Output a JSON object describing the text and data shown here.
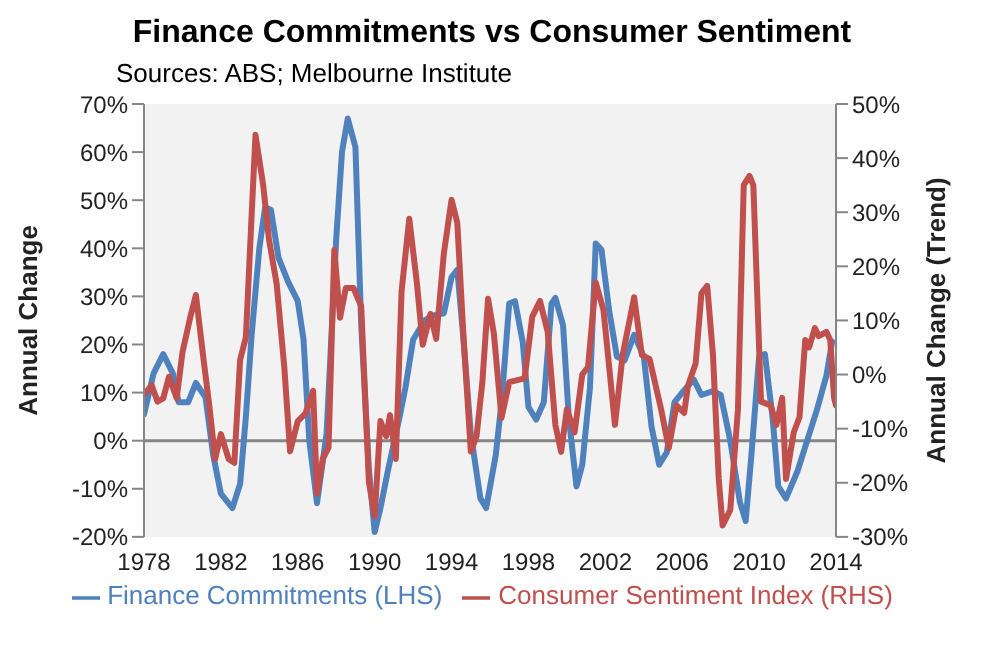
{
  "chart_data": {
    "type": "line",
    "title": "Finance Commitments vs Consumer Sentiment",
    "subtitle": "Sources: ABS; Melbourne Institute",
    "ylabel": "Annual Change",
    "y2label": "Annual Change (Trend)",
    "xlim": [
      1978,
      2014
    ],
    "xticks": [
      1978,
      1982,
      1986,
      1990,
      1994,
      1998,
      2002,
      2006,
      2010,
      2014
    ],
    "ylim": [
      -20,
      70
    ],
    "yticks": [
      {
        "value": -20,
        "label": "-20%"
      },
      {
        "value": -10,
        "label": "-10%"
      },
      {
        "value": 0,
        "label": "0%"
      },
      {
        "value": 10,
        "label": "10%"
      },
      {
        "value": 20,
        "label": "20%"
      },
      {
        "value": 30,
        "label": "30%"
      },
      {
        "value": 40,
        "label": "40%"
      },
      {
        "value": 50,
        "label": "50%"
      },
      {
        "value": 60,
        "label": "60%"
      },
      {
        "value": 70,
        "label": "70%"
      }
    ],
    "y2lim": [
      -30,
      50
    ],
    "y2ticks": [
      {
        "value": -30,
        "label": "-30%"
      },
      {
        "value": -20,
        "label": "-20%"
      },
      {
        "value": -10,
        "label": "-10%"
      },
      {
        "value": 0,
        "label": "0%"
      },
      {
        "value": 10,
        "label": "10%"
      },
      {
        "value": 20,
        "label": "20%"
      },
      {
        "value": 30,
        "label": "30%"
      },
      {
        "value": 40,
        "label": "40%"
      },
      {
        "value": 50,
        "label": "50%"
      }
    ],
    "grid": false,
    "legend": "bottom",
    "marker": "none",
    "line_style": "solid",
    "ref_lines": [
      {
        "axis": "y",
        "value": 0,
        "color": "#868686"
      }
    ],
    "series": [
      {
        "name": "Finance Commitments (LHS)",
        "color": "#4f81bd",
        "x": [
          1978,
          1978.5,
          1979,
          1979.5,
          1979.8,
          1980.3,
          1980.7,
          1981.2,
          1981.6,
          1982,
          1982.6,
          1983,
          1983.3,
          1983.6,
          1984,
          1984.3,
          1984.6,
          1985,
          1985.5,
          1986,
          1986.3,
          1986.6,
          1987,
          1987.5,
          1988,
          1988.3,
          1988.6,
          1989,
          1989.3,
          1989.7,
          1990,
          1990.3,
          1990.7,
          1991.3,
          1991.6,
          1992,
          1992.6,
          1993,
          1993.6,
          1994,
          1994.3,
          1994.6,
          1995,
          1995.5,
          1995.8,
          1996.3,
          1996.6,
          1997,
          1997.3,
          1997.7,
          1998,
          1998.4,
          1998.8,
          1999.2,
          1999.4,
          1999.8,
          2000.1,
          2000.5,
          2000.8,
          2001.2,
          2001.5,
          2001.8,
          2002.2,
          2002.6,
          2003,
          2003.5,
          2004,
          2004.4,
          2004.8,
          2005.2,
          2005.6,
          2006,
          2006.6,
          2007,
          2007.6,
          2008,
          2008.5,
          2009,
          2009.3,
          2009.6,
          2010,
          2010.3,
          2010.7,
          2011,
          2011.4,
          2012,
          2012.5,
          2013,
          2013.5,
          2013.8
        ],
        "values": [
          5.5,
          14,
          18,
          14,
          8,
          8,
          12,
          9,
          -3,
          -11,
          -14,
          -9,
          5,
          22,
          40,
          48.5,
          48,
          38,
          33,
          29,
          21,
          0,
          -13,
          1.5,
          42,
          60,
          67,
          61,
          24,
          -6,
          -19,
          -14,
          -6,
          5,
          11,
          21,
          25,
          26,
          26.5,
          34,
          35.5,
          22,
          1.5,
          -12,
          -14,
          -3,
          8,
          28.5,
          29,
          20.6,
          7,
          4.4,
          8,
          28.5,
          29.7,
          24,
          4.8,
          -9.5,
          -5,
          11,
          41,
          39.7,
          27,
          17.5,
          16.7,
          22,
          17.5,
          3,
          -5,
          -2.4,
          8,
          10,
          12.7,
          9.5,
          10.3,
          9.5,
          0,
          -12.7,
          -16.7,
          -3,
          17.5,
          18,
          4.8,
          -9.5,
          -12,
          -6.3,
          0,
          6.3,
          13.5,
          20.6
        ]
      },
      {
        "name": "Consumer Sentiment Index (RHS)",
        "color": "#c0504d",
        "axis": "y2",
        "x": [
          1978,
          1978.4,
          1978.7,
          1979,
          1979.3,
          1979.7,
          1980,
          1980.4,
          1980.7,
          1981.1,
          1981.4,
          1981.7,
          1982,
          1982.4,
          1982.7,
          1983,
          1983.3,
          1983.6,
          1983.8,
          1984.2,
          1984.5,
          1984.9,
          1985.3,
          1985.6,
          1986,
          1986.4,
          1986.8,
          1987,
          1987.3,
          1987.6,
          1987.9,
          1988.2,
          1988.5,
          1988.9,
          1989.3,
          1989.7,
          1990,
          1990.3,
          1990.6,
          1990.8,
          1991.1,
          1991.4,
          1991.8,
          1992.2,
          1992.5,
          1992.9,
          1993.2,
          1993.6,
          1994,
          1994.3,
          1994.6,
          1995,
          1995.3,
          1995.6,
          1995.9,
          1996.2,
          1996.6,
          1997,
          1997.8,
          1998.2,
          1998.6,
          1999,
          1999.4,
          1999.7,
          2000,
          2000.4,
          2000.8,
          2001.1,
          2001.5,
          2001.9,
          2002.2,
          2002.5,
          2002.9,
          2003.5,
          2003.9,
          2004.3,
          2004.9,
          2005.3,
          2005.7,
          2006.1,
          2006.3,
          2006.7,
          2007,
          2007.3,
          2007.6,
          2007.9,
          2008.1,
          2008.5,
          2008.9,
          2009.2,
          2009.5,
          2009.7,
          2010.1,
          2010.6,
          2010.9,
          2011.2,
          2011.4,
          2011.8,
          2012.1,
          2012.4,
          2012.6,
          2012.9,
          2013.1,
          2013.5,
          2013.7,
          2013.9,
          2014
        ],
        "values": [
          -3.7,
          -2,
          -5,
          -4.4,
          -0.4,
          -4.4,
          4.1,
          10.5,
          14.7,
          2.7,
          -5.8,
          -15.6,
          -11,
          -15.6,
          -16.3,
          2.7,
          6.9,
          29.5,
          44.3,
          35,
          25,
          16.8,
          1.3,
          -14.2,
          -8.6,
          -7.2,
          -3,
          -22,
          -15.6,
          -13.5,
          23,
          10.5,
          16,
          16,
          12.6,
          -19.9,
          -26.2,
          -8.6,
          -11.4,
          -7.5,
          -15.6,
          15.4,
          28.8,
          16.8,
          5.5,
          11.2,
          6.6,
          22.4,
          32.3,
          28,
          8.3,
          -14.2,
          -11.4,
          -1.5,
          14,
          7.6,
          -8,
          -1.4,
          -0.7,
          10.7,
          13.6,
          7.9,
          -9.3,
          -14.3,
          -6.4,
          -10.7,
          0,
          1.4,
          17,
          12,
          1.4,
          -9.3,
          3.6,
          14.3,
          3.6,
          2.9,
          -6.4,
          -13.6,
          -5.7,
          -7.1,
          -2.1,
          2.1,
          15,
          16.4,
          3.6,
          -19.3,
          -27.9,
          -25,
          -6.4,
          35,
          36.7,
          35,
          -5,
          -5.7,
          -9.3,
          -4.3,
          -19.3,
          -10.7,
          -7.9,
          6.4,
          5,
          8.6,
          7.1,
          7.9,
          6.4,
          -4.3,
          -5.7
        ]
      }
    ]
  }
}
